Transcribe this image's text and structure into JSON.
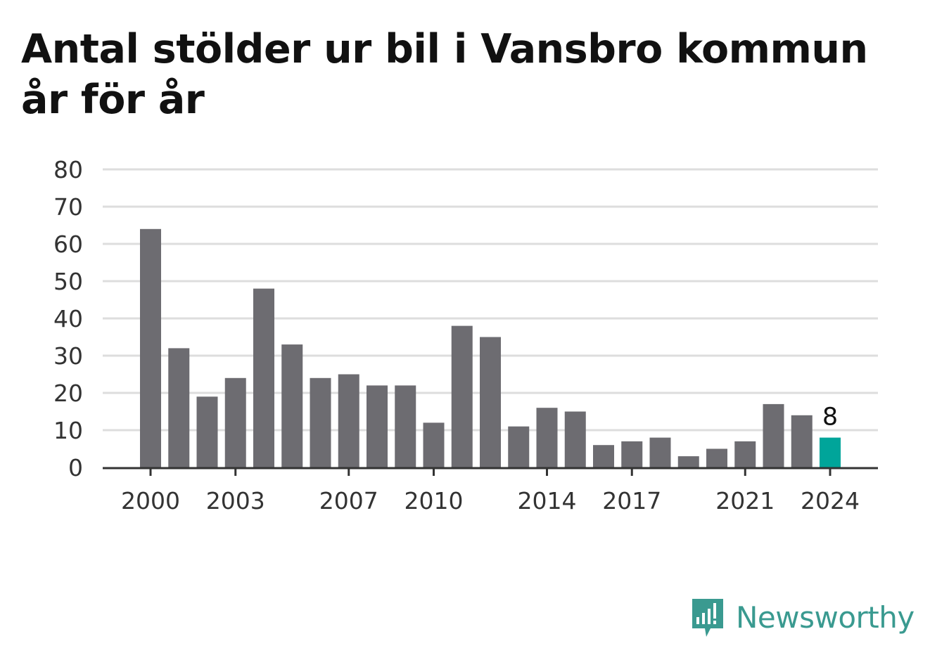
{
  "title_lines": [
    "Antal stölder ur bil i Vansbro kommun",
    "år för år"
  ],
  "logo": {
    "text": "Newsworthy",
    "icon": "newsworthy-bar-chart-icon",
    "color": "#3a9a90"
  },
  "colors": {
    "bar": "#6d6c71",
    "highlight": "#00a59a",
    "grid": "#dddddd",
    "axis": "#333333",
    "text": "#333333"
  },
  "chart_data": {
    "type": "bar",
    "title": "Antal stölder ur bil i Vansbro kommun år för år",
    "xlabel": "",
    "ylabel": "",
    "categories": [
      2000,
      2001,
      2002,
      2003,
      2004,
      2005,
      2006,
      2007,
      2008,
      2009,
      2010,
      2011,
      2012,
      2013,
      2014,
      2015,
      2016,
      2017,
      2018,
      2019,
      2020,
      2021,
      2022,
      2023,
      2024
    ],
    "values": [
      64,
      32,
      19,
      24,
      48,
      33,
      24,
      25,
      22,
      22,
      12,
      38,
      35,
      11,
      16,
      15,
      6,
      7,
      8,
      3,
      5,
      7,
      17,
      14,
      8
    ],
    "ylim": [
      0,
      80
    ],
    "yticks": [
      0,
      10,
      20,
      30,
      40,
      50,
      60,
      70,
      80
    ],
    "xtick_labels": [
      "2000",
      "2003",
      "2007",
      "2010",
      "2014",
      "2017",
      "2021",
      "2024"
    ],
    "highlight": {
      "category": 2024,
      "label": "8"
    },
    "grid": true,
    "legend": "none"
  }
}
